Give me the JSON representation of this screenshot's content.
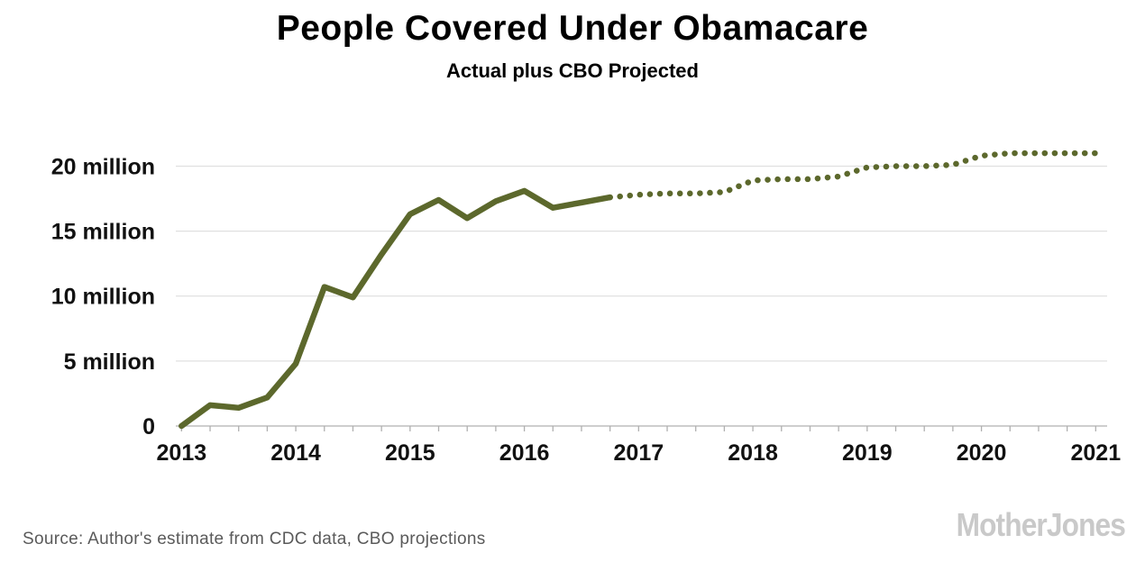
{
  "header": {
    "title": "People Covered Under Obamacare",
    "subtitle": "Actual plus CBO Projected"
  },
  "footer": {
    "source": "Source: Author's estimate from CDC data, CBO projections",
    "logo": "MotherJones"
  },
  "chart_data": {
    "type": "line",
    "title": "People Covered Under Obamacare",
    "subtitle": "Actual plus CBO Projected",
    "xlabel": "",
    "ylabel": "",
    "xlim": [
      2012.95,
      2021.1
    ],
    "ylim": [
      0,
      23.5
    ],
    "grid": true,
    "line_color": "#5c682c",
    "grid_color": "#e0e0e0",
    "axis_color": "#b0b0b0",
    "yticks": [
      {
        "value": 0,
        "label": "0"
      },
      {
        "value": 5,
        "label": "5 million"
      },
      {
        "value": 10,
        "label": "10 million"
      },
      {
        "value": 15,
        "label": "15 million"
      },
      {
        "value": 20,
        "label": "20 million"
      }
    ],
    "xticks": [
      2013,
      2014,
      2015,
      2016,
      2017,
      2018,
      2019,
      2020,
      2021
    ],
    "series": [
      {
        "name": "Actual",
        "style": "solid",
        "x": [
          2013.0,
          2013.25,
          2013.5,
          2013.75,
          2014.0,
          2014.25,
          2014.5,
          2014.75,
          2015.0,
          2015.25,
          2015.5,
          2015.75,
          2016.0,
          2016.25,
          2016.5,
          2016.75
        ],
        "y": [
          0,
          1.6,
          1.4,
          2.2,
          4.8,
          10.7,
          9.9,
          13.2,
          16.3,
          17.4,
          16.0,
          17.3,
          18.1,
          16.8,
          17.2,
          17.6
        ]
      },
      {
        "name": "CBO Projected",
        "style": "dotted",
        "x": [
          2016.75,
          2017.0,
          2017.25,
          2017.5,
          2017.75,
          2018.0,
          2018.25,
          2018.5,
          2018.75,
          2019.0,
          2019.25,
          2019.5,
          2019.75,
          2020.0,
          2020.25,
          2020.5,
          2020.75,
          2021.0
        ],
        "y": [
          17.6,
          17.8,
          17.9,
          17.9,
          18.0,
          18.9,
          19.0,
          19.0,
          19.2,
          19.9,
          20.0,
          20.0,
          20.1,
          20.8,
          21.0,
          21.0,
          21.0,
          21.0
        ]
      }
    ]
  }
}
